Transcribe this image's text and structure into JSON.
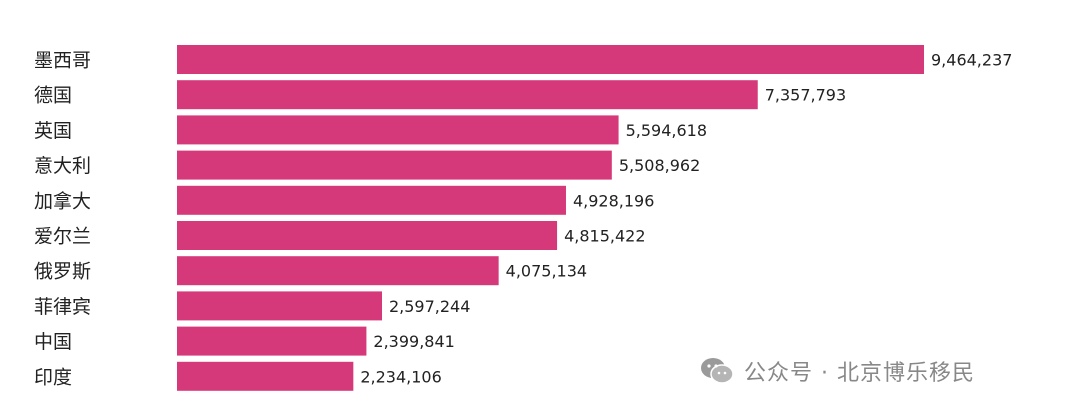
{
  "chart_data": {
    "type": "bar",
    "orientation": "horizontal",
    "categories": [
      "墨西哥",
      "德国",
      "英国",
      "意大利",
      "加拿大",
      "爱尔兰",
      "俄罗斯",
      "菲律宾",
      "中国",
      "印度"
    ],
    "values": [
      9464237,
      7357793,
      5594618,
      5508962,
      4928196,
      4815422,
      4075134,
      2597244,
      2399841,
      2234106
    ],
    "value_labels": [
      "9,464,237",
      "7,357,793",
      "5,594,618",
      "5,508,962",
      "4,928,196",
      "4,815,422",
      "4,075,134",
      "2,597,244",
      "2,399,841",
      "2,234,106"
    ],
    "xlim": [
      0,
      9464237
    ],
    "grid": false,
    "bar_color": "#D6397A"
  },
  "watermark": {
    "text": "公众号 · 北京博乐移民",
    "icon": "wechat-icon"
  }
}
